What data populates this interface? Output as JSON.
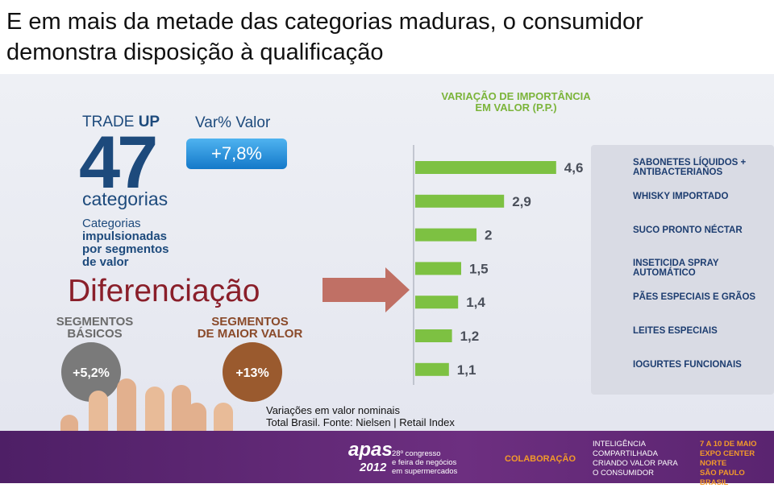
{
  "title": [
    "E em mais da metade das categorias maduras, o consumidor",
    "demonstra disposição à qualificação"
  ],
  "trade_up": {
    "label": "TRADE",
    "label_bold": "UP",
    "number": "47",
    "unit": "categorias",
    "description": [
      "Categorias",
      "impulsionadas",
      "por segmentos",
      "de valor"
    ]
  },
  "var_valor": {
    "label": "Var% Valor",
    "value": "+7,8%"
  },
  "diferenciacao": "Diferenciação",
  "segments": [
    {
      "name": [
        "SEGMENTOS",
        "BÁSICOS"
      ],
      "value": "+5,2%"
    },
    {
      "name": [
        "SEGMENTOS",
        "DE MAIOR VALOR"
      ],
      "value": "+13%"
    }
  ],
  "chart_data": {
    "type": "bar",
    "orientation": "horizontal",
    "title": [
      "VARIAÇÃO DE IMPORTÂNCIA",
      "EM VALOR (P.P.)"
    ],
    "categories": [
      "SABONETES LÍQUIDOS + ANTIBACTERIANOS",
      "WHISKY IMPORTADO",
      "SUCO PRONTO NÉCTAR",
      "INSETICIDA SPRAY AUTOMÁTICO",
      "PÃES ESPECIAIS E GRÃOS",
      "LEITES ESPECIAIS",
      "IOGURTES FUNCIONAIS"
    ],
    "values": [
      4.6,
      2.9,
      2,
      1.5,
      1.4,
      1.2,
      1.1
    ],
    "value_labels": [
      "4,6",
      "2,9",
      "2",
      "1,5",
      "1,4",
      "1,2",
      "1,1"
    ],
    "color": "#7dc142"
  },
  "source": [
    "Variações em valor nominais",
    "Total Brasil. Fonte: Nielsen | Retail Index"
  ],
  "footer": {
    "logo": "apas",
    "logo_year": "2012",
    "congress": [
      "28º congresso",
      "e feira de negócios",
      "em supermercados"
    ],
    "tag": "COLABORAÇÃO",
    "motto": [
      "INTELIGÊNCIA",
      "COMPARTILHADA",
      "CRIANDO VALOR PARA",
      "O CONSUMIDOR"
    ],
    "event": [
      "7 A 10 DE MAIO",
      "EXPO CENTER NORTE",
      "SÃO PAULO",
      "BRASIL"
    ]
  }
}
